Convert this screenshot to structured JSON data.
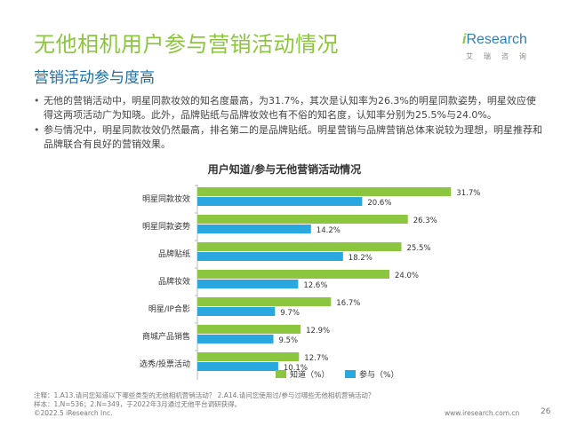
{
  "header": {
    "title": "无他相机用户参与营销活动情况",
    "subtitle": "营销活动参与度高"
  },
  "logo": {
    "i": "i",
    "name": "Research",
    "chinese": "艾瑞咨询"
  },
  "bullets": [
    "无他的营销活动中，明星同款妆效的知名度最高，为31.7%，其次是认知率为26.3%的明星同款姿势，明星效应使得这两项活动广为知晓。此外，品牌贴纸与品牌妆效也有不俗的知名度，认知率分别为25.5%与24.0%。",
    "参与情况中，明星同款妆效仍然最高，排名第二的是品牌贴纸。明星营销与品牌营销总体来说较为理想，明星推荐和品牌联合有良好的营销效果。"
  ],
  "chart_data": {
    "type": "bar",
    "orientation": "horizontal",
    "title": "用户知道/参与无他营销活动情况",
    "categories": [
      "明星同款妆效",
      "明星同款姿势",
      "品牌贴纸",
      "品牌妆效",
      "明星/IP合影",
      "商城产品销售",
      "选秀/投票活动"
    ],
    "series": [
      {
        "name": "知道（%）",
        "color": "#8cc63f",
        "values": [
          31.7,
          26.3,
          25.5,
          24.0,
          16.7,
          12.9,
          12.7
        ]
      },
      {
        "name": "参与（%）",
        "color": "#29a8e0",
        "values": [
          20.6,
          14.2,
          18.2,
          12.6,
          9.7,
          9.5,
          10.1
        ]
      }
    ],
    "xlim": [
      0,
      35
    ],
    "legend": "bottom",
    "grid": false
  },
  "footer": {
    "note1": "注释：1.A13.请问您知道以下哪些类型的无他相机营销活动？ 2.A14.请问您使用过/参与过哪些无他相机营销活动？",
    "note2": "样本：1.N=536；2.N=349，于2022年3月通过无他平台调研获得。",
    "copyright": "©2022.5 iResearch Inc.",
    "website": "www.iresearch.com.cn",
    "page": "26"
  }
}
